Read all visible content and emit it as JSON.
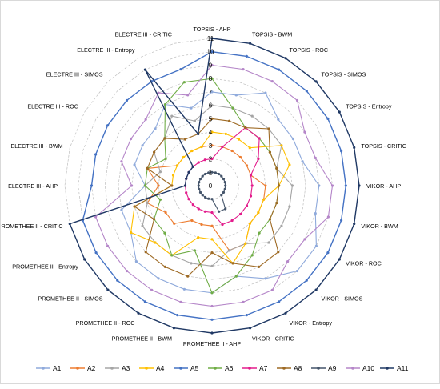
{
  "chart_data": {
    "type": "radar",
    "grid": true,
    "legend_position": "bottom",
    "rlim": [
      0,
      11
    ],
    "ticks": [
      "0",
      "1",
      "2",
      "3",
      "4",
      "5",
      "6",
      "7",
      "8",
      "9",
      "10",
      "11"
    ],
    "categories": [
      "TOPSIS - AHP",
      "TOPSIS - BWM",
      "TOPSIS - ROC",
      "TOPSIS - SIMOS",
      "TOPSIS - Entropy",
      "TOPSIS - CRITIC",
      "VIKOR - AHP",
      "VIKOR - BWM",
      "VIKOR - ROC",
      "VIKOR - SIMOS",
      "VIKOR - Entropy",
      "VIKOR - CRITIC",
      "PROMETHEE II - AHP",
      "PROMETHEE II - BWM",
      "PROMETHEE II - ROC",
      "PROMETHEE II - SIMOS",
      "PROMETHEE II - Entropy",
      "PROMETHEE II - CRITIC",
      "ELECTRE III - AHP",
      "ELECTRE III - BWM",
      "ELECTRE III - ROC",
      "ELECTRE III - SIMOS",
      "ELECTRE III - Entropy",
      "ELECTRE III - CRITIC"
    ],
    "series": [
      {
        "name": "A1",
        "color": "#8faadc",
        "marker": "diamond",
        "values": [
          7,
          7,
          8,
          7,
          7,
          7,
          8,
          8,
          9,
          9,
          8,
          7,
          8,
          8,
          8,
          8,
          7,
          7,
          5,
          6,
          6,
          6,
          7,
          6
        ]
      },
      {
        "name": "A2",
        "color": "#ed7d31",
        "marker": "square",
        "values": [
          3,
          3,
          3,
          3,
          3,
          3,
          4,
          4,
          4,
          4,
          5,
          5,
          3,
          3,
          3,
          4,
          4,
          5,
          4,
          5,
          3,
          3,
          3,
          3
        ]
      },
      {
        "name": "A3",
        "color": "#a5a5a5",
        "marker": "triangle",
        "values": [
          6,
          6,
          6,
          6,
          6,
          5,
          6,
          6,
          6,
          6,
          5,
          5,
          6,
          6,
          6,
          6,
          6,
          5,
          5,
          4,
          5,
          5,
          6,
          5
        ]
      },
      {
        "name": "A4",
        "color": "#ffc000",
        "marker": "x",
        "values": [
          4,
          4,
          4,
          4,
          6,
          6,
          5,
          4,
          4,
          4,
          5,
          6,
          4,
          4,
          6,
          6,
          7,
          6,
          3,
          3,
          3,
          3,
          3,
          3
        ]
      },
      {
        "name": "A5",
        "color": "#4472c4",
        "marker": "star",
        "values": [
          10,
          10,
          10,
          10,
          10,
          10,
          10,
          10,
          10,
          10,
          10,
          10,
          10,
          10,
          10,
          10,
          10,
          10,
          9,
          9,
          9,
          9,
          9,
          9
        ]
      },
      {
        "name": "A6",
        "color": "#70ad47",
        "marker": "circle",
        "values": [
          8,
          6,
          5,
          5,
          5,
          5,
          5,
          5,
          5,
          5,
          6,
          7,
          8,
          5,
          6,
          5,
          5,
          4,
          5,
          5,
          4,
          5,
          7,
          8
        ]
      },
      {
        "name": "A7",
        "color": "#e31b8c",
        "marker": "plus",
        "values": [
          2,
          3,
          5,
          5,
          4,
          3,
          3,
          3,
          3,
          3,
          3,
          3,
          2,
          2,
          2,
          2,
          2,
          2,
          2,
          2,
          2,
          2,
          2,
          2
        ]
      },
      {
        "name": "A8",
        "color": "#9e6a24",
        "marker": "none",
        "values": [
          5,
          5,
          5,
          6,
          5,
          5,
          5,
          5,
          5,
          7,
          7,
          6,
          5,
          7,
          7,
          7,
          5,
          6,
          3,
          5,
          5,
          5,
          4,
          4
        ]
      },
      {
        "name": "A9",
        "color": "#44546a",
        "marker": "dash",
        "values": [
          1,
          1,
          1,
          1,
          1,
          1,
          1,
          1,
          1,
          1,
          2,
          2,
          1,
          1,
          1,
          1,
          1,
          1,
          1,
          1,
          1,
          1,
          1,
          1
        ]
      },
      {
        "name": "A10",
        "color": "#b586c9",
        "marker": "circle",
        "values": [
          9,
          9,
          9,
          9,
          8,
          8,
          9,
          9,
          8,
          8,
          9,
          9,
          9,
          9,
          9,
          9,
          9,
          9,
          6,
          7,
          7,
          7,
          8,
          7
        ]
      },
      {
        "name": "A11",
        "color": "#1f3864",
        "marker": "circle",
        "values": [
          11,
          11,
          11,
          11,
          11,
          11,
          11,
          11,
          11,
          11,
          11,
          11,
          11,
          11,
          11,
          11,
          11,
          11,
          2,
          2,
          2,
          2,
          10,
          4
        ]
      }
    ]
  }
}
